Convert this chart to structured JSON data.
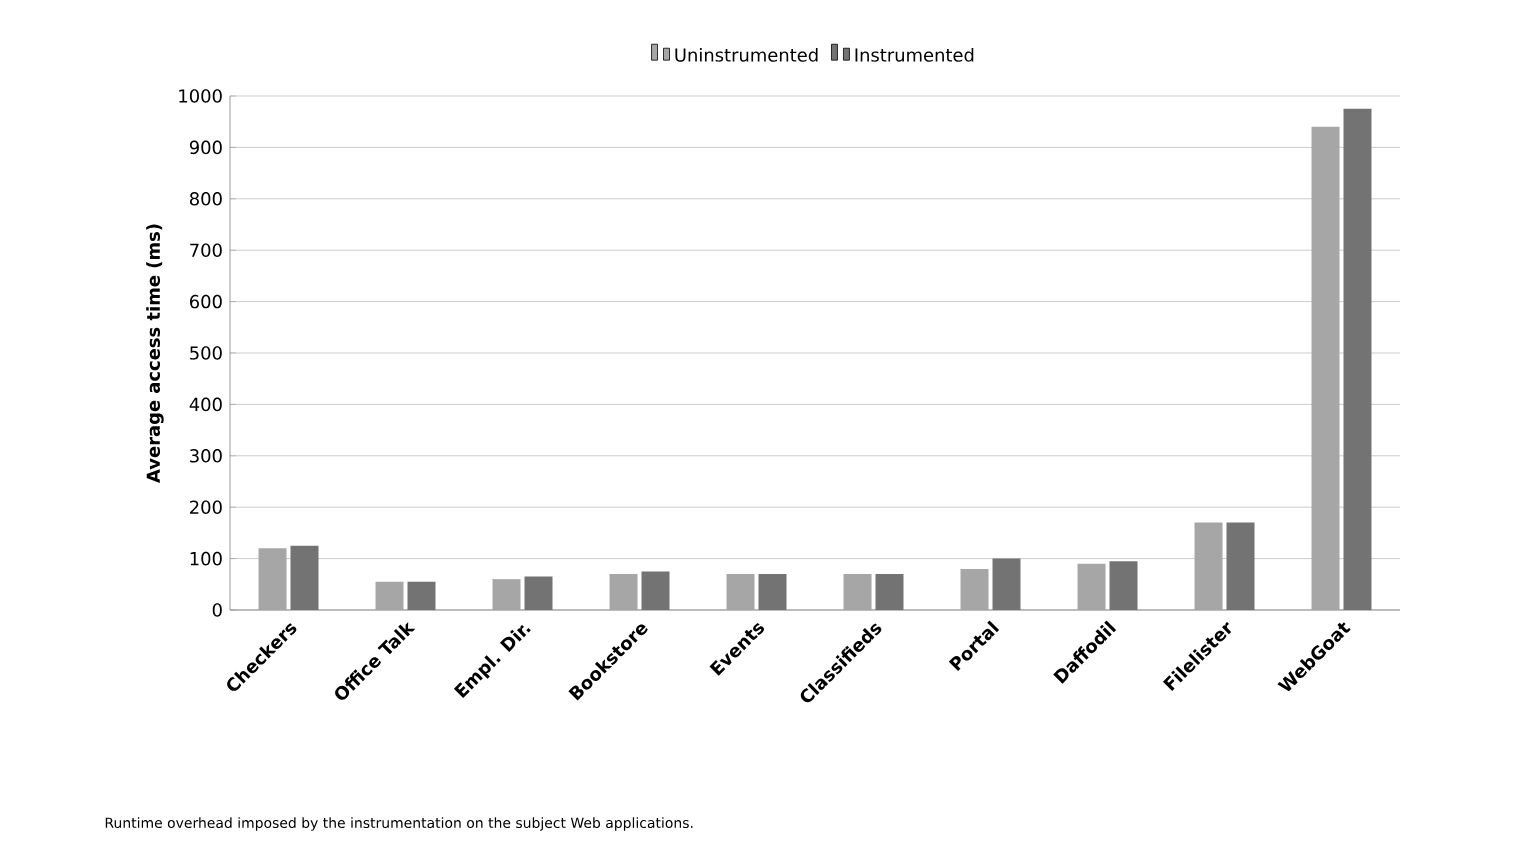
{
  "chart_data": {
    "type": "bar",
    "ylabel": "Average access time (ms)",
    "categories": [
      "Checkers",
      "Office Talk",
      "Empl. Dir.",
      "Bookstore",
      "Events",
      "Classifieds",
      "Portal",
      "Daffodil",
      "Filelister",
      "WebGoat"
    ],
    "series": [
      {
        "name": "Uninstrumented",
        "color": "#a6a6a6",
        "values": [
          120,
          55,
          60,
          70,
          70,
          70,
          80,
          90,
          170,
          940
        ]
      },
      {
        "name": "Instrumented",
        "color": "#737373",
        "values": [
          125,
          55,
          65,
          75,
          70,
          70,
          100,
          95,
          170,
          975
        ]
      }
    ],
    "ylim": [
      0,
      1000
    ],
    "yticks": [
      0,
      100,
      200,
      300,
      400,
      500,
      600,
      700,
      800,
      900,
      1000
    ],
    "grid": "y",
    "legend": "top",
    "annotations": [
      "Runtime overhead imposed by the instrumentation on the subject Web applications."
    ]
  }
}
